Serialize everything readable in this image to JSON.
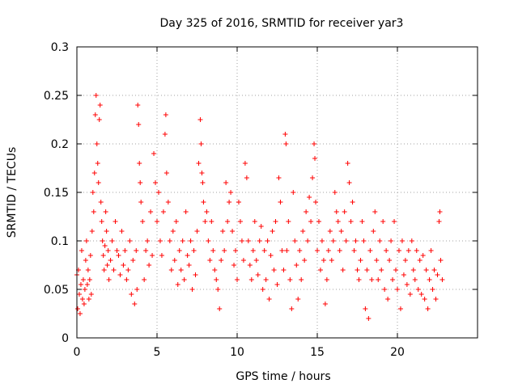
{
  "chart_data": {
    "type": "scatter",
    "title": "Day 325 of 2016, SRMTID for receiver yar3",
    "xlabel": "GPS time / hours",
    "ylabel": "SRMTID / TECUs",
    "xlim": [
      0,
      25
    ],
    "ylim": [
      0,
      0.3
    ],
    "xticks": [
      0,
      5,
      10,
      15,
      20
    ],
    "xtick_labels": [
      "0",
      "5",
      "10",
      "15",
      "20"
    ],
    "yticks": [
      0,
      0.05,
      0.1,
      0.15,
      0.2,
      0.25,
      0.3
    ],
    "ytick_labels": [
      "0",
      "0.05",
      "0.1",
      "0.15",
      "0.2",
      "0.25",
      "0.3"
    ],
    "grid": true,
    "marker": "plus",
    "color": "#ff0000",
    "x_data_range": [
      0,
      22.8
    ],
    "series": [
      {
        "name": "SRMTID",
        "points": [
          [
            0.0,
            0.065
          ],
          [
            0.05,
            0.03
          ],
          [
            0.1,
            0.07
          ],
          [
            0.15,
            0.045
          ],
          [
            0.2,
            0.025
          ],
          [
            0.25,
            0.055
          ],
          [
            0.3,
            0.09
          ],
          [
            0.35,
            0.04
          ],
          [
            0.4,
            0.06
          ],
          [
            0.45,
            0.035
          ],
          [
            0.5,
            0.05
          ],
          [
            0.55,
            0.08
          ],
          [
            0.6,
            0.1
          ],
          [
            0.65,
            0.055
          ],
          [
            0.7,
            0.07
          ],
          [
            0.75,
            0.04
          ],
          [
            0.8,
            0.06
          ],
          [
            0.85,
            0.085
          ],
          [
            0.9,
            0.045
          ],
          [
            0.95,
            0.11
          ],
          [
            1.0,
            0.15
          ],
          [
            1.05,
            0.13
          ],
          [
            1.1,
            0.17
          ],
          [
            1.15,
            0.23
          ],
          [
            1.2,
            0.25
          ],
          [
            1.25,
            0.2
          ],
          [
            1.3,
            0.18
          ],
          [
            1.35,
            0.16
          ],
          [
            1.4,
            0.225
          ],
          [
            1.45,
            0.24
          ],
          [
            1.5,
            0.14
          ],
          [
            1.55,
            0.12
          ],
          [
            1.6,
            0.1
          ],
          [
            1.65,
            0.085
          ],
          [
            1.7,
            0.07
          ],
          [
            1.75,
            0.095
          ],
          [
            1.8,
            0.13
          ],
          [
            1.85,
            0.11
          ],
          [
            1.9,
            0.075
          ],
          [
            1.95,
            0.09
          ],
          [
            2.0,
            0.06
          ],
          [
            2.1,
            0.08
          ],
          [
            2.2,
            0.1
          ],
          [
            2.3,
            0.07
          ],
          [
            2.4,
            0.12
          ],
          [
            2.5,
            0.09
          ],
          [
            2.6,
            0.085
          ],
          [
            2.7,
            0.065
          ],
          [
            2.8,
            0.11
          ],
          [
            2.9,
            0.075
          ],
          [
            3.0,
            0.09
          ],
          [
            3.1,
            0.06
          ],
          [
            3.2,
            0.07
          ],
          [
            3.3,
            0.1
          ],
          [
            3.4,
            0.045
          ],
          [
            3.5,
            0.08
          ],
          [
            3.6,
            0.035
          ],
          [
            3.7,
            0.09
          ],
          [
            3.75,
            0.05
          ],
          [
            3.8,
            0.24
          ],
          [
            3.85,
            0.22
          ],
          [
            3.9,
            0.18
          ],
          [
            3.95,
            0.16
          ],
          [
            4.0,
            0.14
          ],
          [
            4.1,
            0.12
          ],
          [
            4.2,
            0.06
          ],
          [
            4.3,
            0.09
          ],
          [
            4.4,
            0.1
          ],
          [
            4.5,
            0.075
          ],
          [
            4.6,
            0.13
          ],
          [
            4.7,
            0.085
          ],
          [
            4.8,
            0.19
          ],
          [
            4.9,
            0.16
          ],
          [
            5.0,
            0.12
          ],
          [
            5.1,
            0.15
          ],
          [
            5.2,
            0.1
          ],
          [
            5.3,
            0.085
          ],
          [
            5.4,
            0.13
          ],
          [
            5.5,
            0.21
          ],
          [
            5.55,
            0.23
          ],
          [
            5.6,
            0.17
          ],
          [
            5.7,
            0.14
          ],
          [
            5.8,
            0.1
          ],
          [
            5.9,
            0.07
          ],
          [
            6.0,
            0.11
          ],
          [
            6.1,
            0.08
          ],
          [
            6.2,
            0.12
          ],
          [
            6.3,
            0.055
          ],
          [
            6.4,
            0.09
          ],
          [
            6.5,
            0.07
          ],
          [
            6.6,
            0.1
          ],
          [
            6.7,
            0.06
          ],
          [
            6.8,
            0.13
          ],
          [
            6.9,
            0.085
          ],
          [
            7.0,
            0.075
          ],
          [
            7.1,
            0.1
          ],
          [
            7.2,
            0.05
          ],
          [
            7.3,
            0.09
          ],
          [
            7.4,
            0.065
          ],
          [
            7.5,
            0.11
          ],
          [
            7.6,
            0.18
          ],
          [
            7.7,
            0.225
          ],
          [
            7.75,
            0.2
          ],
          [
            7.8,
            0.17
          ],
          [
            7.85,
            0.16
          ],
          [
            7.9,
            0.14
          ],
          [
            8.0,
            0.12
          ],
          [
            8.1,
            0.13
          ],
          [
            8.2,
            0.1
          ],
          [
            8.3,
            0.08
          ],
          [
            8.4,
            0.12
          ],
          [
            8.5,
            0.09
          ],
          [
            8.6,
            0.07
          ],
          [
            8.7,
            0.06
          ],
          [
            8.8,
            0.05
          ],
          [
            8.9,
            0.03
          ],
          [
            9.0,
            0.08
          ],
          [
            9.1,
            0.11
          ],
          [
            9.2,
            0.09
          ],
          [
            9.3,
            0.16
          ],
          [
            9.4,
            0.12
          ],
          [
            9.5,
            0.14
          ],
          [
            9.6,
            0.15
          ],
          [
            9.7,
            0.11
          ],
          [
            9.8,
            0.075
          ],
          [
            9.9,
            0.09
          ],
          [
            10.0,
            0.06
          ],
          [
            10.1,
            0.14
          ],
          [
            10.2,
            0.12
          ],
          [
            10.3,
            0.1
          ],
          [
            10.4,
            0.08
          ],
          [
            10.5,
            0.18
          ],
          [
            10.6,
            0.165
          ],
          [
            10.7,
            0.1
          ],
          [
            10.8,
            0.075
          ],
          [
            10.9,
            0.06
          ],
          [
            11.0,
            0.09
          ],
          [
            11.1,
            0.12
          ],
          [
            11.2,
            0.08
          ],
          [
            11.3,
            0.065
          ],
          [
            11.4,
            0.1
          ],
          [
            11.5,
            0.115
          ],
          [
            11.6,
            0.05
          ],
          [
            11.7,
            0.09
          ],
          [
            11.8,
            0.06
          ],
          [
            11.9,
            0.1
          ],
          [
            12.0,
            0.04
          ],
          [
            12.1,
            0.085
          ],
          [
            12.2,
            0.11
          ],
          [
            12.3,
            0.07
          ],
          [
            12.4,
            0.12
          ],
          [
            12.5,
            0.055
          ],
          [
            12.6,
            0.165
          ],
          [
            12.7,
            0.14
          ],
          [
            12.8,
            0.09
          ],
          [
            12.9,
            0.07
          ],
          [
            13.0,
            0.21
          ],
          [
            13.05,
            0.2
          ],
          [
            13.1,
            0.09
          ],
          [
            13.2,
            0.12
          ],
          [
            13.3,
            0.06
          ],
          [
            13.4,
            0.03
          ],
          [
            13.5,
            0.15
          ],
          [
            13.6,
            0.1
          ],
          [
            13.7,
            0.075
          ],
          [
            13.8,
            0.04
          ],
          [
            13.9,
            0.09
          ],
          [
            14.0,
            0.06
          ],
          [
            14.1,
            0.11
          ],
          [
            14.2,
            0.08
          ],
          [
            14.3,
            0.13
          ],
          [
            14.4,
            0.1
          ],
          [
            14.5,
            0.145
          ],
          [
            14.6,
            0.12
          ],
          [
            14.7,
            0.165
          ],
          [
            14.8,
            0.2
          ],
          [
            14.85,
            0.185
          ],
          [
            14.9,
            0.14
          ],
          [
            15.0,
            0.09
          ],
          [
            15.1,
            0.12
          ],
          [
            15.2,
            0.07
          ],
          [
            15.3,
            0.1
          ],
          [
            15.4,
            0.08
          ],
          [
            15.5,
            0.035
          ],
          [
            15.6,
            0.06
          ],
          [
            15.7,
            0.09
          ],
          [
            15.8,
            0.11
          ],
          [
            15.9,
            0.08
          ],
          [
            16.0,
            0.1
          ],
          [
            16.1,
            0.15
          ],
          [
            16.2,
            0.13
          ],
          [
            16.3,
            0.12
          ],
          [
            16.4,
            0.09
          ],
          [
            16.5,
            0.11
          ],
          [
            16.6,
            0.07
          ],
          [
            16.7,
            0.13
          ],
          [
            16.8,
            0.1
          ],
          [
            16.9,
            0.18
          ],
          [
            17.0,
            0.16
          ],
          [
            17.1,
            0.12
          ],
          [
            17.2,
            0.14
          ],
          [
            17.3,
            0.09
          ],
          [
            17.4,
            0.1
          ],
          [
            17.5,
            0.07
          ],
          [
            17.6,
            0.06
          ],
          [
            17.7,
            0.08
          ],
          [
            17.8,
            0.12
          ],
          [
            17.9,
            0.1
          ],
          [
            18.0,
            0.03
          ],
          [
            18.1,
            0.07
          ],
          [
            18.2,
            0.02
          ],
          [
            18.3,
            0.09
          ],
          [
            18.4,
            0.06
          ],
          [
            18.5,
            0.11
          ],
          [
            18.6,
            0.13
          ],
          [
            18.7,
            0.08
          ],
          [
            18.8,
            0.06
          ],
          [
            18.9,
            0.1
          ],
          [
            19.0,
            0.07
          ],
          [
            19.1,
            0.12
          ],
          [
            19.2,
            0.05
          ],
          [
            19.3,
            0.09
          ],
          [
            19.4,
            0.04
          ],
          [
            19.5,
            0.08
          ],
          [
            19.6,
            0.1
          ],
          [
            19.7,
            0.06
          ],
          [
            19.8,
            0.12
          ],
          [
            19.9,
            0.07
          ],
          [
            20.0,
            0.05
          ],
          [
            20.1,
            0.09
          ],
          [
            20.2,
            0.03
          ],
          [
            20.3,
            0.1
          ],
          [
            20.4,
            0.065
          ],
          [
            20.5,
            0.08
          ],
          [
            20.6,
            0.055
          ],
          [
            20.7,
            0.09
          ],
          [
            20.8,
            0.045
          ],
          [
            20.9,
            0.1
          ],
          [
            21.0,
            0.07
          ],
          [
            21.1,
            0.06
          ],
          [
            21.2,
            0.09
          ],
          [
            21.3,
            0.05
          ],
          [
            21.4,
            0.08
          ],
          [
            21.5,
            0.045
          ],
          [
            21.6,
            0.085
          ],
          [
            21.7,
            0.04
          ],
          [
            21.8,
            0.07
          ],
          [
            21.9,
            0.03
          ],
          [
            22.0,
            0.06
          ],
          [
            22.1,
            0.09
          ],
          [
            22.2,
            0.05
          ],
          [
            22.3,
            0.07
          ],
          [
            22.4,
            0.04
          ],
          [
            22.5,
            0.065
          ],
          [
            22.6,
            0.12
          ],
          [
            22.65,
            0.13
          ],
          [
            22.7,
            0.08
          ],
          [
            22.8,
            0.06
          ]
        ]
      }
    ]
  }
}
